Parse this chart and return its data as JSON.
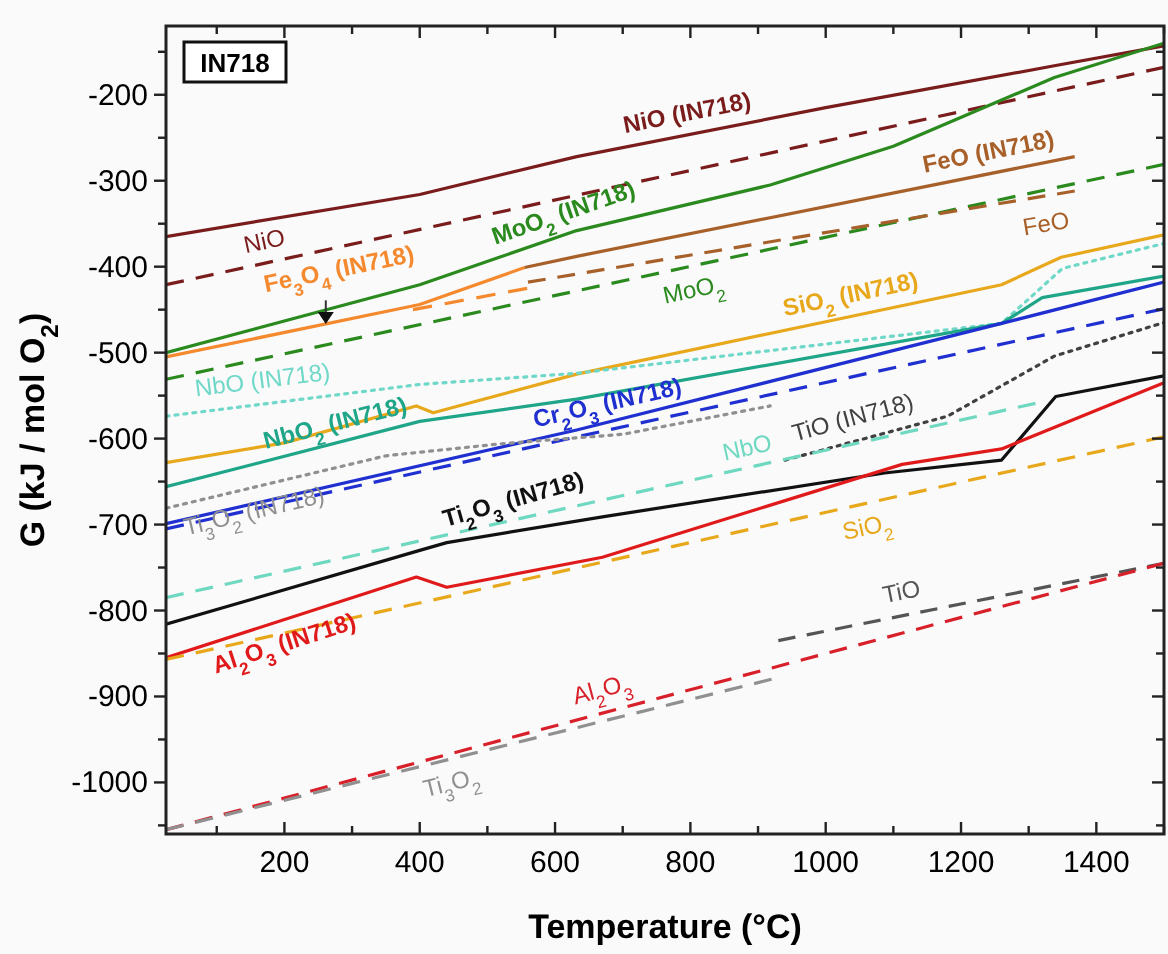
{
  "chart_data": {
    "type": "line",
    "xlabel": "Temperature (°C)",
    "ylabel": "G (kJ / mol O$_{2}$)",
    "annotations": [
      "IN718"
    ],
    "xlim": [
      25,
      1500
    ],
    "ylim": [
      -1060,
      -120
    ],
    "xticks": [
      {
        "value": 100,
        "label": null
      },
      200,
      {
        "value": 300,
        "label": null
      },
      400,
      {
        "value": 500,
        "label": null
      },
      600,
      {
        "value": 700,
        "label": null
      },
      800,
      {
        "value": 900,
        "label": null
      },
      1000,
      {
        "value": 1100,
        "label": null
      },
      1200,
      {
        "value": 1300,
        "label": null
      },
      1400,
      {
        "value": 1500,
        "label": null
      }
    ],
    "yticks": [
      {
        "value": -1050,
        "label": null
      },
      -1000,
      {
        "value": -950,
        "label": null
      },
      -900,
      {
        "value": -850,
        "label": null
      },
      -800,
      {
        "value": -750,
        "label": null
      },
      -700,
      {
        "value": -650,
        "label": null
      },
      -600,
      {
        "value": -550,
        "label": null
      },
      -500,
      {
        "value": -450,
        "label": null
      },
      -400,
      {
        "value": -350,
        "label": null
      },
      -300,
      {
        "value": -250,
        "label": null
      },
      -200,
      {
        "value": -150,
        "label": null
      }
    ],
    "grid": false,
    "series": [
      {
        "name": "NiO (IN718)",
        "color": "#7a1c1c",
        "line_style": "solid",
        "x": [
          25,
          400,
          632,
          1000,
          1340,
          1500
        ],
        "values": [
          -365,
          -316,
          -272,
          -215,
          -166,
          -143
        ]
      },
      {
        "name": "NiO",
        "color": "#7a1c1c",
        "line_style": "dashed",
        "x": [
          25,
          1500
        ],
        "values": [
          -421,
          -168
        ]
      },
      {
        "name": "MoO$_{2}$ (IN718)",
        "color": "#2a8a1e",
        "line_style": "solid",
        "x": [
          25,
          400,
          632,
          918,
          1100,
          1338,
          1500
        ],
        "values": [
          -500,
          -421,
          -358,
          -305,
          -260,
          -180,
          -140
        ]
      },
      {
        "name": "MoO$_{2}$",
        "color": "#2a8a1e",
        "line_style": "dashed",
        "x": [
          25,
          1500
        ],
        "values": [
          -531,
          -281
        ]
      },
      {
        "name": "Fe$_{3}$O$_{4}$ (IN718)",
        "color": "#f5892e",
        "line_style": "solid",
        "x": [
          25,
          400,
          555
        ],
        "values": [
          -505,
          -444,
          -401
        ]
      },
      {
        "color": "#f5892e",
        "line_style": "dashed",
        "x": [
          390,
          560
        ],
        "values": [
          -450,
          -425
        ]
      },
      {
        "name": "FeO (IN718)",
        "color": "#a8602a",
        "line_style": "solid",
        "x": [
          555,
          632,
          1368
        ],
        "values": [
          -401,
          -388,
          -272
        ]
      },
      {
        "name": "FeO",
        "color": "#a8602a",
        "line_style": "dashed",
        "x": [
          560,
          1368
        ],
        "values": [
          -418,
          -312
        ]
      },
      {
        "name": "SiO$_{2}$ (IN718)",
        "color": "#e8a81c",
        "line_style": "solid",
        "x": [
          25,
          200,
          395,
          420,
          632,
          1000,
          1260,
          1348,
          1500
        ],
        "values": [
          -628,
          -605,
          -562,
          -570,
          -525,
          -464,
          -421,
          -389,
          -363
        ]
      },
      {
        "name": "NbO (IN718)",
        "color": "#6fd8c8",
        "line_style": "dotted",
        "x": [
          25,
          400,
          632,
          1260,
          1350,
          1500
        ],
        "values": [
          -574,
          -537,
          -524,
          -466,
          -402,
          -373
        ]
      },
      {
        "name": "NbO$_{2}$ (IN718)",
        "color": "#1fa588",
        "line_style": "solid",
        "x": [
          25,
          400,
          632,
          1260,
          1320,
          1500
        ],
        "values": [
          -656,
          -580,
          -554,
          -466,
          -436,
          -411
        ]
      },
      {
        "name": "Cr$_{2}$O$_{3}$ (IN718)",
        "color": "#1f2fd0",
        "line_style": "solid",
        "x": [
          25,
          632,
          1260,
          1500
        ],
        "values": [
          -699,
          -590,
          -466,
          -418
        ]
      },
      {
        "color": "#1f2fd0",
        "line_style": "dashed",
        "x": [
          25,
          632,
          1500
        ],
        "values": [
          -705,
          -598,
          -449
        ]
      },
      {
        "name": "Ti$_{3}$O$_{2}$ (IN718)",
        "color": "#909090",
        "line_style": "dotted",
        "x": [
          25,
          350,
          520,
          700,
          918
        ],
        "values": [
          -681,
          -620,
          -606,
          -595,
          -562
        ]
      },
      {
        "name": "TiO (IN718)",
        "color": "#404040",
        "line_style": "dotted",
        "x": [
          940,
          1180,
          1338,
          1500
        ],
        "values": [
          -625,
          -574,
          -504,
          -465
        ]
      },
      {
        "name": "NbO",
        "color": "#6fd8c0",
        "line_style": "dashed",
        "x": [
          25,
          1310
        ],
        "values": [
          -785,
          -559
        ]
      },
      {
        "name": "Ti$_{2}$O$_{3}$ (IN718)",
        "color": "#111111",
        "line_style": "solid",
        "x": [
          25,
          400,
          440,
          670,
          1087,
          1260,
          1340,
          1500
        ],
        "values": [
          -816,
          -730,
          -721,
          -691,
          -640,
          -625,
          -551,
          -527
        ]
      },
      {
        "name": "Al$_{2}$O$_{3}$ (IN718)",
        "color": "#e01a1a",
        "line_style": "solid",
        "x": [
          25,
          395,
          440,
          670,
          1113,
          1260,
          1500
        ],
        "values": [
          -855,
          -761,
          -773,
          -738,
          -630,
          -612,
          -535
        ]
      },
      {
        "name": "SiO$_{2}$",
        "color": "#e8a81c",
        "line_style": "dashed",
        "x": [
          25,
          1500
        ],
        "values": [
          -857,
          -598
        ]
      },
      {
        "name": "TiO",
        "color": "#555555",
        "line_style": "dashed",
        "x": [
          930,
          1500
        ],
        "values": [
          -835,
          -745
        ]
      },
      {
        "name": "Al$_{2}$O$_{3}$",
        "color": "#d8202a",
        "line_style": "dashed",
        "x": [
          25,
          1500
        ],
        "values": [
          -1055,
          -745
        ]
      },
      {
        "name": "Ti$_{3}$O$_{2}$",
        "color": "#909090",
        "line_style": "dashed",
        "x": [
          25,
          920
        ],
        "values": [
          -1055,
          -880
        ]
      }
    ]
  }
}
